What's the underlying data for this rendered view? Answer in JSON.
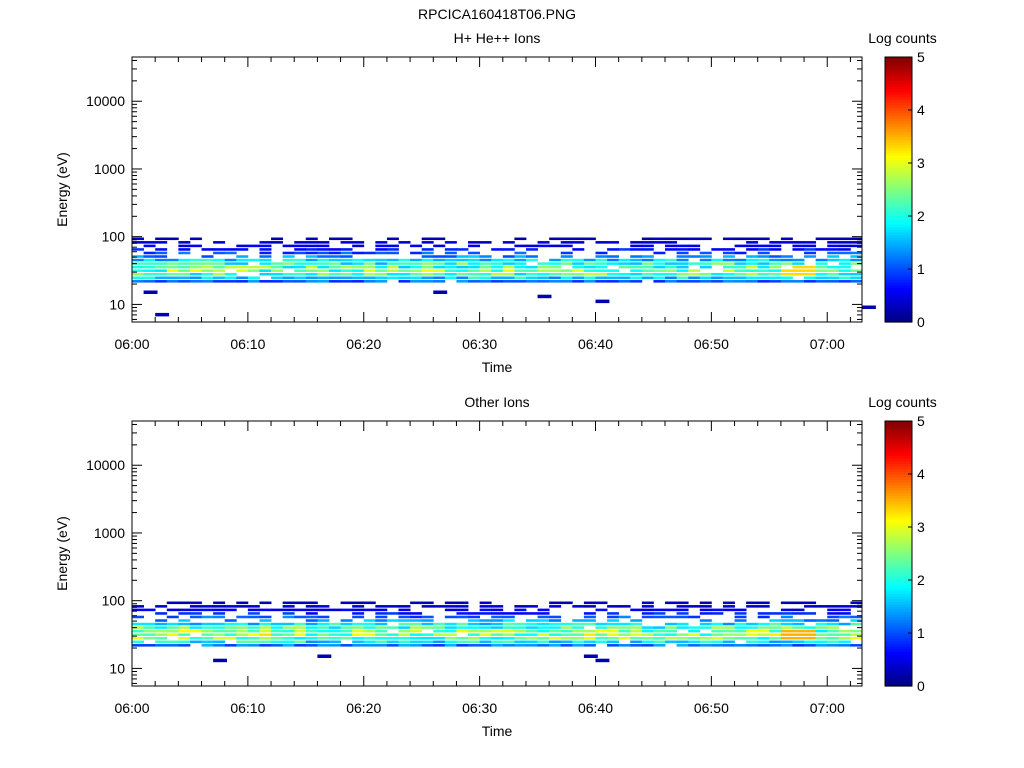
{
  "figure_title": "RPCICA160418T06.PNG",
  "chart_data": [
    {
      "type": "heatmap",
      "title": "H+ He++ Ions",
      "xlabel": "Time",
      "ylabel": "Energy (eV)",
      "x_ticks": [
        "06:00",
        "06:10",
        "06:20",
        "06:30",
        "06:40",
        "06:50",
        "07:00"
      ],
      "xlim": [
        "06:00",
        "07:03"
      ],
      "y_scale": "log",
      "y_ticks": [
        10,
        100,
        1000,
        10000
      ],
      "y_tick_labels": [
        "10",
        "100",
        "1000",
        "10000"
      ],
      "ylim": [
        5.5,
        45000
      ],
      "colorbar": {
        "label": "Log counts",
        "range": [
          0,
          5
        ],
        "ticks": [
          "0",
          "1",
          "2",
          "3",
          "4",
          "5"
        ]
      },
      "profile": {
        "time_start": "06:00",
        "time_end": "07:03",
        "energy_band_eV": [
          20,
          95
        ],
        "peak_energy_eV": 30,
        "typical_peak_log_counts": 2.3,
        "max_log_counts": 3.3,
        "max_time": "06:57",
        "isolated_low_energy_pixels": [
          {
            "time": "06:01",
            "energy": 15
          },
          {
            "time": "06:02",
            "energy": 7
          },
          {
            "time": "06:26",
            "energy": 15
          },
          {
            "time": "06:35",
            "energy": 13
          },
          {
            "time": "06:40",
            "energy": 11
          },
          {
            "time": "07:03",
            "energy": 9
          }
        ]
      }
    },
    {
      "type": "heatmap",
      "title": "Other Ions",
      "xlabel": "Time",
      "ylabel": "Energy (eV)",
      "x_ticks": [
        "06:00",
        "06:10",
        "06:20",
        "06:30",
        "06:40",
        "06:50",
        "07:00"
      ],
      "xlim": [
        "06:00",
        "07:03"
      ],
      "y_scale": "log",
      "y_ticks": [
        10,
        100,
        1000,
        10000
      ],
      "y_tick_labels": [
        "10",
        "100",
        "1000",
        "10000"
      ],
      "ylim": [
        5.5,
        45000
      ],
      "colorbar": {
        "label": "Log counts",
        "range": [
          0,
          5
        ],
        "ticks": [
          "0",
          "1",
          "2",
          "3",
          "4",
          "5"
        ]
      },
      "profile": {
        "time_start": "06:00",
        "time_end": "07:03",
        "energy_band_eV": [
          20,
          95
        ],
        "peak_energy_eV": 30,
        "typical_peak_log_counts": 2.5,
        "max_log_counts": 3.5,
        "max_time": "06:57",
        "isolated_low_energy_pixels": [
          {
            "time": "06:07",
            "energy": 13
          },
          {
            "time": "06:16",
            "energy": 15
          },
          {
            "time": "06:39",
            "energy": 15
          },
          {
            "time": "06:40",
            "energy": 13
          }
        ]
      }
    }
  ]
}
